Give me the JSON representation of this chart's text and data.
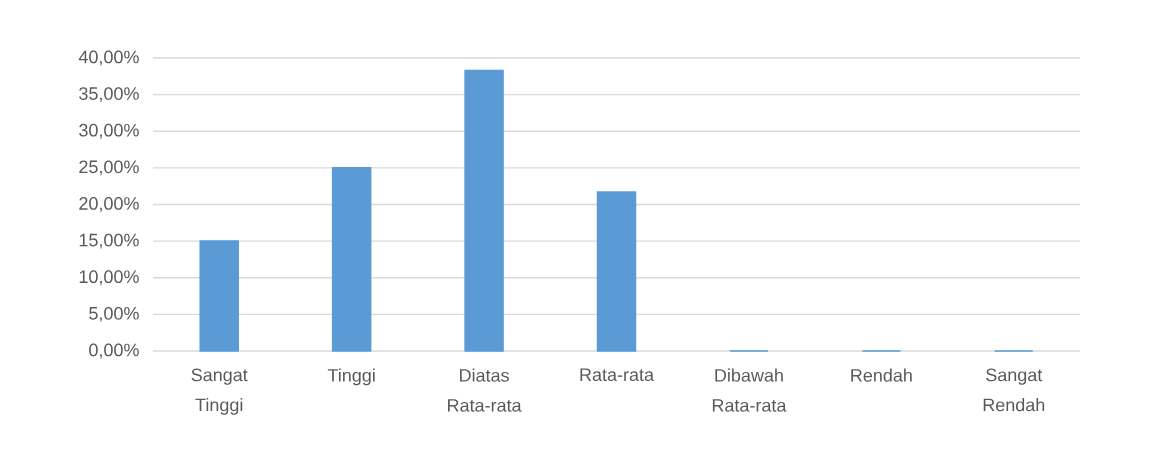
{
  "chart_data": {
    "type": "bar",
    "categories": [
      "Sangat Tinggi",
      "Tinggi",
      "Diatas Rata-rata",
      "Rata-rata",
      "Dibawah Rata-rata",
      "Rendah",
      "Sangat Rendah"
    ],
    "values": [
      15,
      25,
      38.3,
      21.7,
      0,
      0,
      0
    ],
    "color": "#5b9bd5",
    "ylim": [
      0,
      40
    ],
    "yticks": [
      {
        "value": 0,
        "label": "0,00%"
      },
      {
        "value": 5,
        "label": "5,00%"
      },
      {
        "value": 10,
        "label": "10,00%"
      },
      {
        "value": 15,
        "label": "15,00%"
      },
      {
        "value": 20,
        "label": "20,00%"
      },
      {
        "value": 25,
        "label": "25,00%"
      },
      {
        "value": 30,
        "label": "30,00%"
      },
      {
        "value": 35,
        "label": "35,00%"
      },
      {
        "value": 40,
        "label": "40,00%"
      }
    ],
    "grid": "y"
  }
}
